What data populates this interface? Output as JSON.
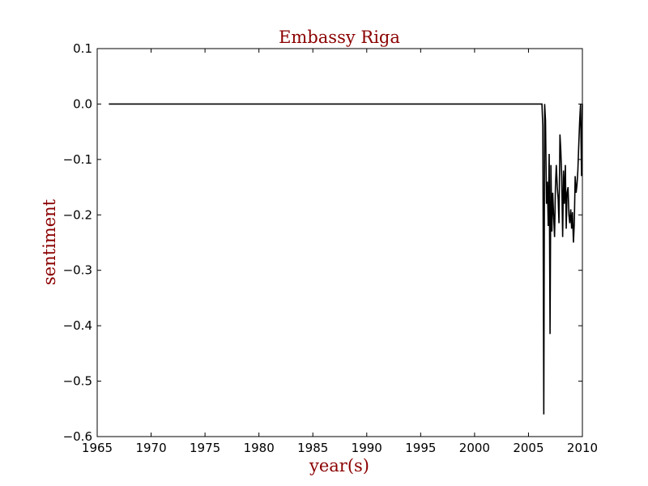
{
  "colors": {
    "label_color": "#8b0000",
    "line_color": "#000000",
    "axes_color": "#000000",
    "background": "#ffffff"
  },
  "chart_data": {
    "type": "line",
    "title": "Embassy Riga",
    "xlabel": "year(s)",
    "ylabel": "sentiment",
    "xlim": [
      1965,
      2010
    ],
    "ylim": [
      -0.6,
      0.1
    ],
    "x_ticks": [
      1965,
      1970,
      1975,
      1980,
      1985,
      1990,
      1995,
      2000,
      2005,
      2010
    ],
    "x_tick_labels": [
      "1965",
      "1970",
      "1975",
      "1980",
      "1985",
      "1990",
      "1995",
      "2000",
      "2005",
      "2010"
    ],
    "y_ticks": [
      0.1,
      0.0,
      -0.1,
      -0.2,
      -0.3,
      -0.4,
      -0.5,
      -0.6
    ],
    "y_tick_labels": [
      "0.1",
      "0.0",
      "−0.1",
      "−0.2",
      "−0.3",
      "−0.4",
      "−0.5",
      "−0.6"
    ],
    "grid": false,
    "legend": "none",
    "series": [
      {
        "x": [
          1966.08,
          2006.25,
          2006.33,
          2006.42,
          2006.5,
          2006.58,
          2006.67,
          2006.75,
          2006.83,
          2006.92,
          2007.0,
          2007.08,
          2007.17,
          2007.25,
          2007.33,
          2007.42,
          2007.5,
          2007.58,
          2007.67,
          2007.75,
          2007.83,
          2007.92,
          2008.0,
          2008.08,
          2008.17,
          2008.25,
          2008.33,
          2008.42,
          2008.5,
          2008.58,
          2008.67,
          2008.75,
          2008.83,
          2008.92,
          2009.0,
          2009.08,
          2009.17,
          2009.25,
          2009.33,
          2009.42,
          2009.5,
          2009.58,
          2009.67,
          2009.75,
          2009.83,
          2009.92,
          2010.0
        ],
        "y": [
          0.0,
          0.0,
          -0.04,
          -0.56,
          0.0,
          -0.03,
          -0.18,
          -0.14,
          -0.22,
          -0.09,
          -0.415,
          -0.11,
          -0.23,
          -0.16,
          -0.2,
          -0.24,
          -0.15,
          -0.11,
          -0.15,
          -0.17,
          -0.215,
          -0.055,
          -0.085,
          -0.13,
          -0.24,
          -0.12,
          -0.18,
          -0.11,
          -0.225,
          -0.16,
          -0.15,
          -0.2,
          -0.215,
          -0.19,
          -0.225,
          -0.195,
          -0.25,
          -0.215,
          -0.13,
          -0.16,
          -0.145,
          -0.12,
          -0.07,
          -0.03,
          0.0,
          -0.13,
          0.0
        ]
      }
    ]
  }
}
